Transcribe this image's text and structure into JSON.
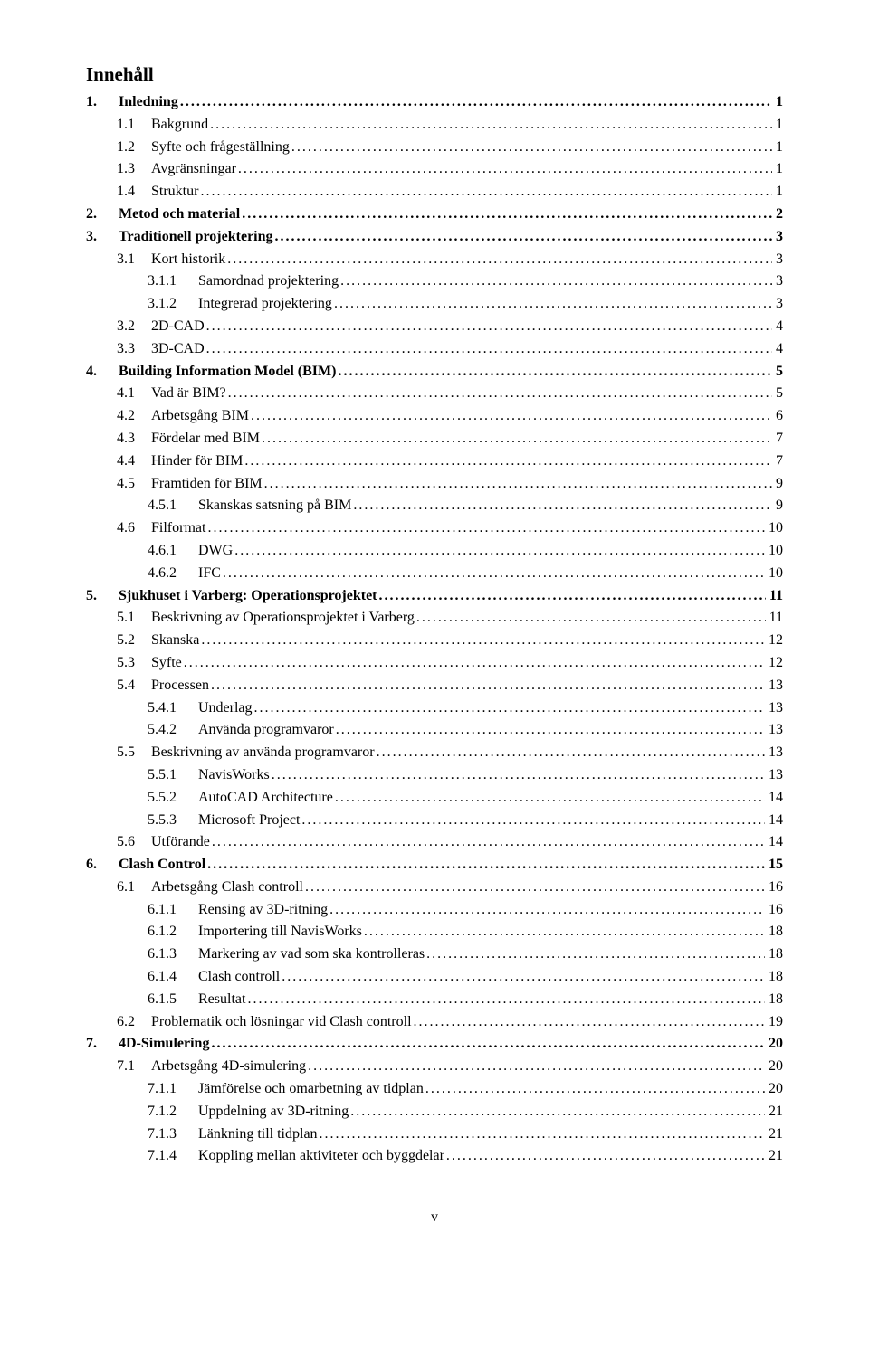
{
  "title": "Innehåll",
  "page_number": "v",
  "entries": [
    {
      "level": 1,
      "bold": true,
      "num": "1.",
      "label": "Inledning",
      "page": "1"
    },
    {
      "level": 2,
      "bold": false,
      "num": "1.1",
      "label": "Bakgrund",
      "page": "1"
    },
    {
      "level": 2,
      "bold": false,
      "num": "1.2",
      "label": "Syfte och frågeställning",
      "page": "1"
    },
    {
      "level": 2,
      "bold": false,
      "num": "1.3",
      "label": "Avgränsningar",
      "page": "1"
    },
    {
      "level": 2,
      "bold": false,
      "num": "1.4",
      "label": "Struktur",
      "page": "1"
    },
    {
      "level": 1,
      "bold": true,
      "num": "2.",
      "label": "Metod och material",
      "page": "2"
    },
    {
      "level": 1,
      "bold": true,
      "num": "3.",
      "label": "Traditionell projektering",
      "page": "3"
    },
    {
      "level": 2,
      "bold": false,
      "num": "3.1",
      "label": "Kort historik",
      "page": "3"
    },
    {
      "level": 3,
      "bold": false,
      "num": "3.1.1",
      "label": "Samordnad projektering",
      "page": "3"
    },
    {
      "level": 3,
      "bold": false,
      "num": "3.1.2",
      "label": "Integrerad projektering",
      "page": "3"
    },
    {
      "level": 2,
      "bold": false,
      "num": "3.2",
      "label": "2D-CAD",
      "page": "4"
    },
    {
      "level": 2,
      "bold": false,
      "num": "3.3",
      "label": "3D-CAD",
      "page": "4"
    },
    {
      "level": 1,
      "bold": true,
      "num": "4.",
      "label": "Building Information Model (BIM)",
      "page": "5"
    },
    {
      "level": 2,
      "bold": false,
      "num": "4.1",
      "label": "Vad är BIM?",
      "page": "5"
    },
    {
      "level": 2,
      "bold": false,
      "num": "4.2",
      "label": "Arbetsgång BIM",
      "page": "6"
    },
    {
      "level": 2,
      "bold": false,
      "num": "4.3",
      "label": "Fördelar med BIM",
      "page": "7"
    },
    {
      "level": 2,
      "bold": false,
      "num": "4.4",
      "label": "Hinder för BIM",
      "page": "7"
    },
    {
      "level": 2,
      "bold": false,
      "num": "4.5",
      "label": "Framtiden för BIM",
      "page": "9"
    },
    {
      "level": 3,
      "bold": false,
      "num": "4.5.1",
      "label": "Skanskas satsning på BIM",
      "page": "9"
    },
    {
      "level": 2,
      "bold": false,
      "num": "4.6",
      "label": "Filformat",
      "page": "10"
    },
    {
      "level": 3,
      "bold": false,
      "num": "4.6.1",
      "label": "DWG",
      "page": "10"
    },
    {
      "level": 3,
      "bold": false,
      "num": "4.6.2",
      "label": "IFC",
      "page": "10"
    },
    {
      "level": 1,
      "bold": true,
      "num": "5.",
      "label": "Sjukhuset i Varberg: Operationsprojektet",
      "page": "11"
    },
    {
      "level": 2,
      "bold": false,
      "num": "5.1",
      "label": "Beskrivning av Operationsprojektet i Varberg",
      "page": "11"
    },
    {
      "level": 2,
      "bold": false,
      "num": "5.2",
      "label": "Skanska",
      "page": "12"
    },
    {
      "level": 2,
      "bold": false,
      "num": "5.3",
      "label": "Syfte",
      "page": "12"
    },
    {
      "level": 2,
      "bold": false,
      "num": "5.4",
      "label": "Processen",
      "page": "13"
    },
    {
      "level": 3,
      "bold": false,
      "num": "5.4.1",
      "label": "Underlag",
      "page": "13"
    },
    {
      "level": 3,
      "bold": false,
      "num": "5.4.2",
      "label": "Använda programvaror",
      "page": "13"
    },
    {
      "level": 2,
      "bold": false,
      "num": "5.5",
      "label": "Beskrivning av använda programvaror",
      "page": "13"
    },
    {
      "level": 3,
      "bold": false,
      "num": "5.5.1",
      "label": "NavisWorks",
      "page": "13"
    },
    {
      "level": 3,
      "bold": false,
      "num": "5.5.2",
      "label": "AutoCAD Architecture",
      "page": "14"
    },
    {
      "level": 3,
      "bold": false,
      "num": "5.5.3",
      "label": "Microsoft Project",
      "page": "14"
    },
    {
      "level": 2,
      "bold": false,
      "num": "5.6",
      "label": "Utförande",
      "page": "14"
    },
    {
      "level": 1,
      "bold": true,
      "num": "6.",
      "label": "Clash Control",
      "page": "15"
    },
    {
      "level": 2,
      "bold": false,
      "num": "6.1",
      "label": "Arbetsgång Clash controll",
      "page": "16"
    },
    {
      "level": 3,
      "bold": false,
      "num": "6.1.1",
      "label": "Rensing av 3D-ritning",
      "page": "16"
    },
    {
      "level": 3,
      "bold": false,
      "num": "6.1.2",
      "label": "Importering till NavisWorks",
      "page": "18"
    },
    {
      "level": 3,
      "bold": false,
      "num": "6.1.3",
      "label": "Markering av vad som ska kontrolleras",
      "page": "18"
    },
    {
      "level": 3,
      "bold": false,
      "num": "6.1.4",
      "label": "Clash controll",
      "page": "18"
    },
    {
      "level": 3,
      "bold": false,
      "num": "6.1.5",
      "label": "Resultat",
      "page": "18"
    },
    {
      "level": 2,
      "bold": false,
      "num": "6.2",
      "label": "Problematik och lösningar vid Clash controll",
      "page": "19"
    },
    {
      "level": 1,
      "bold": true,
      "num": "7.",
      "label": "4D-Simulering",
      "page": "20"
    },
    {
      "level": 2,
      "bold": false,
      "num": "7.1",
      "label": "Arbetsgång 4D-simulering",
      "page": "20"
    },
    {
      "level": 3,
      "bold": false,
      "num": "7.1.1",
      "label": "Jämförelse och omarbetning av tidplan",
      "page": "20"
    },
    {
      "level": 3,
      "bold": false,
      "num": "7.1.2",
      "label": "Uppdelning av 3D-ritning",
      "page": "21"
    },
    {
      "level": 3,
      "bold": false,
      "num": "7.1.3",
      "label": "Länkning till tidplan",
      "page": "21"
    },
    {
      "level": 3,
      "bold": false,
      "num": "7.1.4",
      "label": "Koppling mellan aktiviteter och byggdelar",
      "page": "21"
    }
  ]
}
